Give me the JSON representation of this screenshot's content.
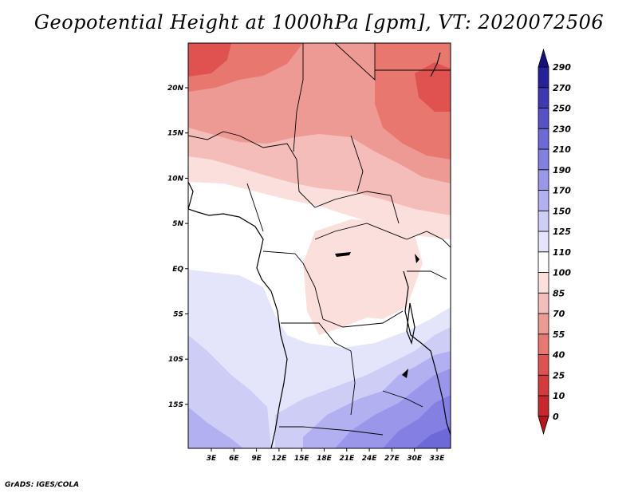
{
  "title": "Geopotential Height at 1000hPa [gpm], VT: 2020072506",
  "credit": "GrADS: IGES/COLA",
  "map": {
    "lat_labels": [
      "20N",
      "15N",
      "10N",
      "5N",
      "EQ",
      "5S",
      "10S",
      "15S"
    ],
    "lon_labels": [
      "3E",
      "6E",
      "9E",
      "12E",
      "15E",
      "18E",
      "21E",
      "24E",
      "27E",
      "30E",
      "33E"
    ]
  },
  "colorbar": {
    "levels": [
      "0",
      "10",
      "25",
      "40",
      "55",
      "70",
      "85",
      "100",
      "110",
      "125",
      "150",
      "170",
      "190",
      "210",
      "230",
      "250",
      "270",
      "290"
    ],
    "colors": [
      "#b8161a",
      "#c8262a",
      "#d6393a",
      "#e0524f",
      "#e87770",
      "#ee9a94",
      "#f4bdb9",
      "#fadfdd",
      "#ffffff",
      "#e4e4fa",
      "#cdcdf6",
      "#b2b0f1",
      "#9a96ea",
      "#8480e3",
      "#6d69d7",
      "#5651c6",
      "#3e39b2",
      "#26219a",
      "#15107e"
    ]
  }
}
